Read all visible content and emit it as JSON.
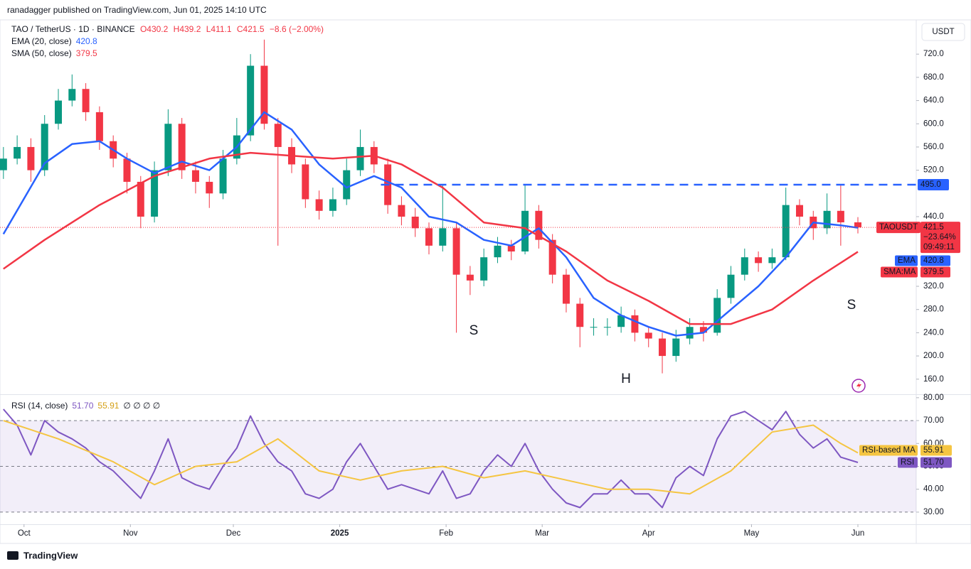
{
  "header": {
    "published": "ranadagger published on TradingView.com, Jun 01, 2025 14:10 UTC"
  },
  "footer": {
    "brand": "TradingView"
  },
  "chart_data": [
    {
      "type": "candlestick",
      "title": "TAO / TetherUS · 1D · BINANCE",
      "ohlc": [
        "O430.2",
        "H439.2",
        "L411.1",
        "C421.5",
        "−8.6 (−2.00%)"
      ],
      "currency": "USDT",
      "up_color": "#089981",
      "down_color": "#f23645",
      "x": [
        0,
        4,
        8,
        12,
        16,
        20,
        24,
        28,
        32,
        36,
        40,
        44,
        48,
        52,
        56,
        60,
        64,
        68,
        72,
        76,
        80,
        84,
        88,
        92,
        96,
        100,
        104,
        108,
        112,
        116,
        120,
        124,
        128,
        132,
        136,
        140,
        144,
        148,
        152,
        156,
        160,
        164,
        168,
        172,
        176,
        180,
        184,
        188,
        192,
        196,
        200,
        204,
        208,
        212,
        216,
        220,
        224,
        228,
        232,
        236,
        240,
        244,
        249
      ],
      "open": [
        520,
        540,
        560,
        520,
        600,
        640,
        660,
        620,
        570,
        540,
        500,
        440,
        520,
        600,
        520,
        500,
        480,
        540,
        580,
        700,
        600,
        560,
        530,
        470,
        450,
        470,
        520,
        560,
        530,
        460,
        440,
        420,
        390,
        420,
        340,
        330,
        370,
        390,
        380,
        450,
        400,
        340,
        290,
        250,
        250,
        250,
        270,
        240,
        230,
        200,
        230,
        250,
        240,
        300,
        340,
        370,
        360,
        370,
        460,
        440,
        420,
        450,
        430.2
      ],
      "high": [
        560,
        580,
        575,
        615,
        660,
        685,
        670,
        630,
        580,
        550,
        510,
        535,
        625,
        610,
        535,
        510,
        555,
        610,
        720,
        745,
        610,
        575,
        540,
        485,
        490,
        540,
        590,
        570,
        540,
        475,
        455,
        430,
        495,
        430,
        355,
        385,
        405,
        400,
        495,
        460,
        410,
        350,
        300,
        265,
        265,
        285,
        280,
        250,
        240,
        245,
        265,
        260,
        315,
        355,
        385,
        380,
        385,
        490,
        470,
        450,
        480,
        495,
        439.2
      ],
      "low": [
        505,
        530,
        500,
        510,
        590,
        630,
        605,
        555,
        525,
        480,
        420,
        430,
        510,
        505,
        480,
        455,
        470,
        530,
        570,
        590,
        390,
        515,
        455,
        435,
        440,
        460,
        510,
        515,
        445,
        425,
        405,
        375,
        380,
        240,
        305,
        320,
        360,
        365,
        375,
        385,
        325,
        275,
        215,
        235,
        235,
        240,
        225,
        215,
        170,
        190,
        220,
        225,
        235,
        290,
        330,
        345,
        350,
        365,
        425,
        400,
        410,
        390,
        411.1
      ],
      "close": [
        540,
        560,
        520,
        600,
        640,
        660,
        620,
        570,
        540,
        500,
        440,
        520,
        600,
        520,
        500,
        480,
        540,
        580,
        700,
        600,
        560,
        530,
        470,
        450,
        470,
        520,
        560,
        530,
        460,
        440,
        420,
        390,
        420,
        340,
        330,
        370,
        390,
        380,
        450,
        400,
        340,
        290,
        250,
        250,
        250,
        270,
        240,
        230,
        200,
        230,
        250,
        240,
        300,
        340,
        370,
        360,
        370,
        460,
        440,
        420,
        450,
        430.2,
        421.5
      ],
      "series": [
        {
          "name": "EMA (20, close)",
          "color": "#2962ff",
          "legend_value": "420.8",
          "badge": "EMA",
          "x": [
            0,
            12,
            20,
            28,
            36,
            44,
            52,
            60,
            68,
            76,
            84,
            92,
            100,
            108,
            116,
            124,
            132,
            140,
            148,
            156,
            164,
            172,
            180,
            188,
            196,
            204,
            212,
            220,
            228,
            236,
            244,
            249
          ],
          "values": [
            410,
            532,
            565,
            570,
            540,
            515,
            535,
            520,
            560,
            620,
            590,
            530,
            490,
            510,
            490,
            440,
            430,
            400,
            390,
            420,
            370,
            300,
            270,
            250,
            235,
            240,
            280,
            320,
            370,
            430,
            425,
            420.8
          ]
        },
        {
          "name": "SMA (50, close)",
          "color": "#f23645",
          "legend_value": "379.5",
          "badge": "SMA:MA",
          "x": [
            0,
            12,
            28,
            44,
            60,
            72,
            84,
            96,
            108,
            116,
            128,
            140,
            152,
            164,
            176,
            188,
            200,
            212,
            224,
            236,
            249
          ],
          "values": [
            350,
            400,
            460,
            510,
            540,
            550,
            545,
            540,
            545,
            530,
            490,
            430,
            420,
            380,
            330,
            295,
            255,
            255,
            280,
            330,
            379.5
          ]
        }
      ],
      "last_price": {
        "symbol": "TAOUSDT",
        "price": "421.5",
        "change": "−23.64%",
        "countdown": "09:49:11"
      },
      "hline": {
        "value": 495,
        "label": "495.0",
        "color": "#2962ff"
      },
      "annotations": [
        "S",
        "H",
        "S"
      ],
      "xlim": [
        -1,
        266
      ],
      "ylim": [
        134,
        779
      ],
      "xticks": [
        {
          "value": 6,
          "label": "Oct"
        },
        {
          "value": 37,
          "label": "Nov"
        },
        {
          "value": 67,
          "label": "Dec"
        },
        {
          "value": 98,
          "label": "2025"
        },
        {
          "value": 129,
          "label": "Feb"
        },
        {
          "value": 157,
          "label": "Mar"
        },
        {
          "value": 188,
          "label": "Apr"
        },
        {
          "value": 218,
          "label": "May"
        },
        {
          "value": 249,
          "label": "Jun"
        }
      ],
      "yticks": [
        {
          "value": 160,
          "label": "160.0"
        },
        {
          "value": 200,
          "label": "200.0"
        },
        {
          "value": 240,
          "label": "240.0"
        },
        {
          "value": 280,
          "label": "280.0"
        },
        {
          "value": 320,
          "label": "320.0"
        },
        {
          "value": 440,
          "label": "440.0"
        },
        {
          "value": 520,
          "label": "520.0"
        },
        {
          "value": 560,
          "label": "560.0"
        },
        {
          "value": 600,
          "label": "600.0"
        },
        {
          "value": 640,
          "label": "640.0"
        },
        {
          "value": 680,
          "label": "680.0"
        },
        {
          "value": 720,
          "label": "720.0"
        }
      ]
    },
    {
      "type": "line",
      "title": "RSI (14, close)",
      "extras": "∅ ∅ ∅ ∅",
      "series": [
        {
          "name": "RSI",
          "color": "#7e57c2",
          "legend_value": "51.70",
          "x": [
            0,
            4,
            8,
            12,
            16,
            20,
            24,
            28,
            32,
            36,
            40,
            44,
            48,
            52,
            56,
            60,
            64,
            68,
            72,
            76,
            80,
            84,
            88,
            92,
            96,
            100,
            104,
            108,
            112,
            116,
            120,
            124,
            128,
            132,
            136,
            140,
            144,
            148,
            152,
            156,
            160,
            164,
            168,
            172,
            176,
            180,
            184,
            188,
            192,
            196,
            200,
            204,
            208,
            212,
            216,
            220,
            224,
            228,
            232,
            236,
            240,
            244,
            249
          ],
          "values": [
            75,
            68,
            55,
            70,
            65,
            62,
            58,
            52,
            48,
            42,
            36,
            48,
            62,
            45,
            42,
            40,
            50,
            58,
            72,
            60,
            52,
            48,
            38,
            36,
            40,
            52,
            60,
            50,
            40,
            42,
            40,
            38,
            48,
            36,
            38,
            48,
            55,
            50,
            60,
            48,
            40,
            34,
            32,
            38,
            38,
            44,
            38,
            38,
            32,
            45,
            50,
            46,
            62,
            72,
            74,
            70,
            66,
            74,
            64,
            58,
            62,
            54,
            51.7
          ]
        },
        {
          "name": "RSI-based MA",
          "color": "#f5c542",
          "legend_value": "55.91",
          "x": [
            0,
            16,
            32,
            44,
            56,
            68,
            80,
            92,
            104,
            116,
            128,
            140,
            152,
            164,
            176,
            188,
            200,
            212,
            224,
            236,
            244,
            249
          ],
          "values": [
            70,
            62,
            52,
            42,
            50,
            52,
            62,
            48,
            44,
            48,
            50,
            45,
            48,
            44,
            40,
            40,
            38,
            48,
            65,
            68,
            60,
            55.91
          ]
        }
      ],
      "band": [
        30,
        70
      ],
      "levels": [
        30,
        50,
        70
      ],
      "xlim": [
        -1,
        266
      ],
      "ylim": [
        24.7,
        81.2
      ],
      "yticks": [
        {
          "value": 30,
          "label": "30.00"
        },
        {
          "value": 40,
          "label": "40.00"
        },
        {
          "value": 50,
          "label": "50.00"
        },
        {
          "value": 60,
          "label": "60.00"
        },
        {
          "value": 70,
          "label": "70.00"
        },
        {
          "value": 80,
          "label": "80.00"
        }
      ]
    }
  ]
}
